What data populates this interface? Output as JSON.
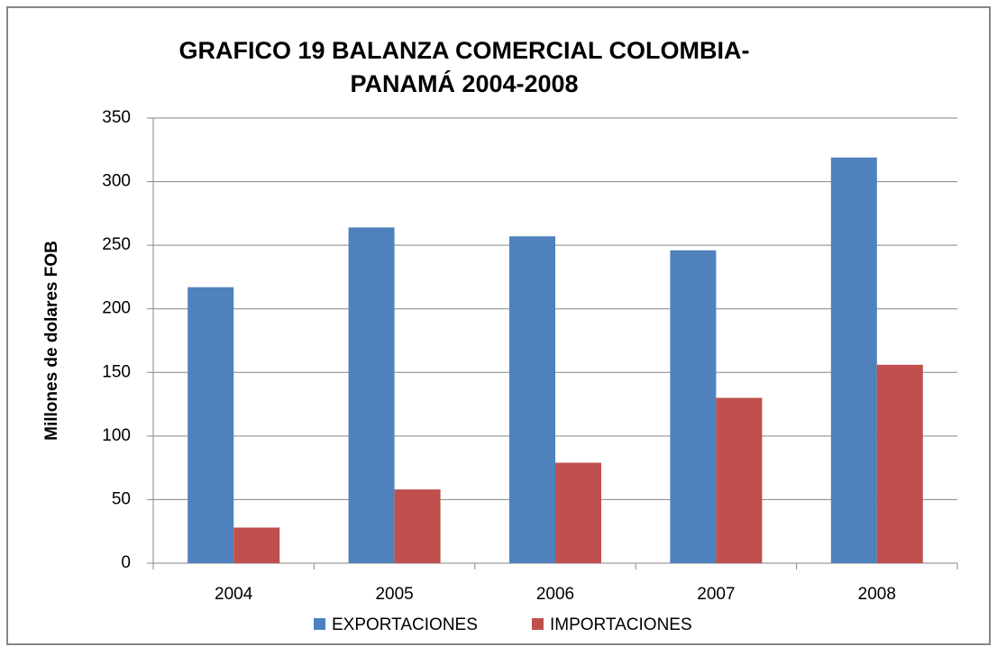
{
  "chart_data": {
    "type": "bar",
    "title": [
      "GRAFICO 19 BALANZA COMERCIAL COLOMBIA-",
      "PANAMÁ 2004-2008"
    ],
    "y_label": "Millones de dolares FOB",
    "categories": [
      "2004",
      "2005",
      "2006",
      "2007",
      "2008"
    ],
    "series": [
      {
        "name": "EXPORTACIONES",
        "color": "#4f81bd",
        "values": [
          217,
          264,
          257,
          246,
          319
        ]
      },
      {
        "name": "IMPORTACIONES",
        "color": "#c0504d",
        "values": [
          28,
          58,
          79,
          130,
          156
        ]
      }
    ],
    "ylim": [
      0,
      350
    ],
    "yticks": [
      0,
      50,
      100,
      150,
      200,
      250,
      300,
      350
    ],
    "grid": true,
    "legend": "bottom"
  }
}
